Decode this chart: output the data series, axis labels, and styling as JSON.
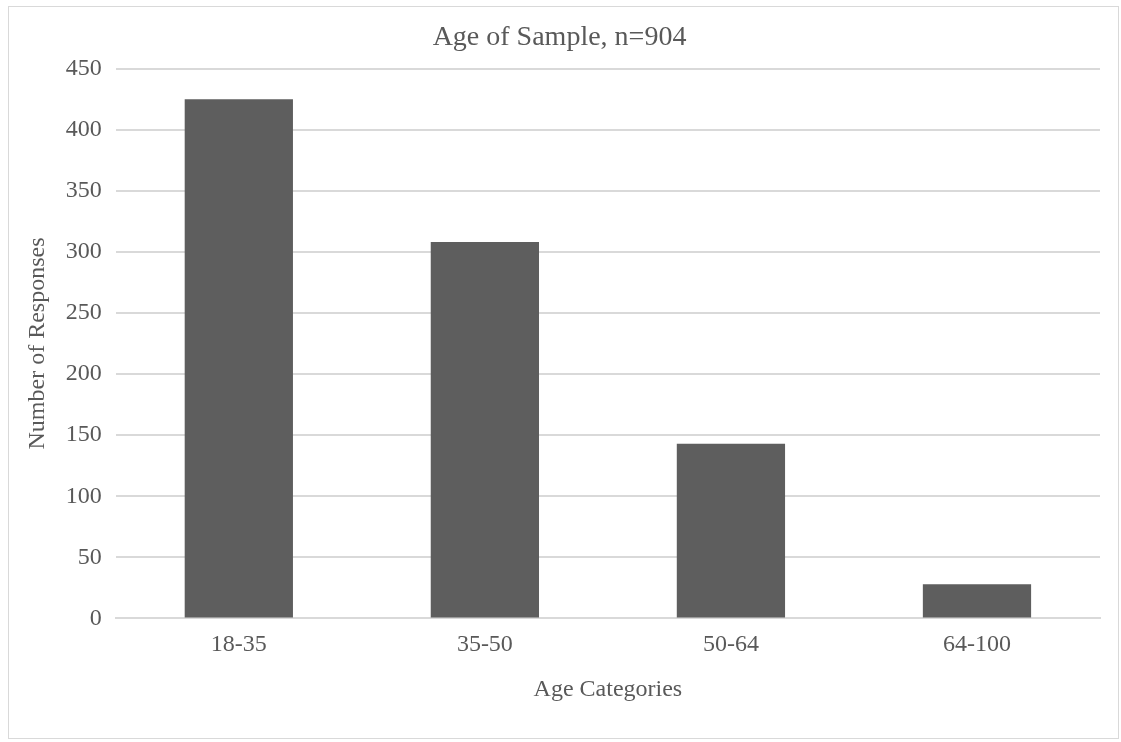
{
  "chart_data": {
    "type": "bar",
    "title": "Age of Sample, n=904",
    "xlabel": "Age Categories",
    "ylabel": "Number of Responses",
    "categories": [
      "18-35",
      "35-50",
      "50-64",
      "64-100"
    ],
    "values": [
      425,
      308,
      143,
      28
    ],
    "color": "#5e5e5e",
    "ylim": [
      0,
      450
    ],
    "yticks": [
      0,
      50,
      100,
      150,
      200,
      250,
      300,
      350,
      400,
      450
    ],
    "grid": "y"
  }
}
